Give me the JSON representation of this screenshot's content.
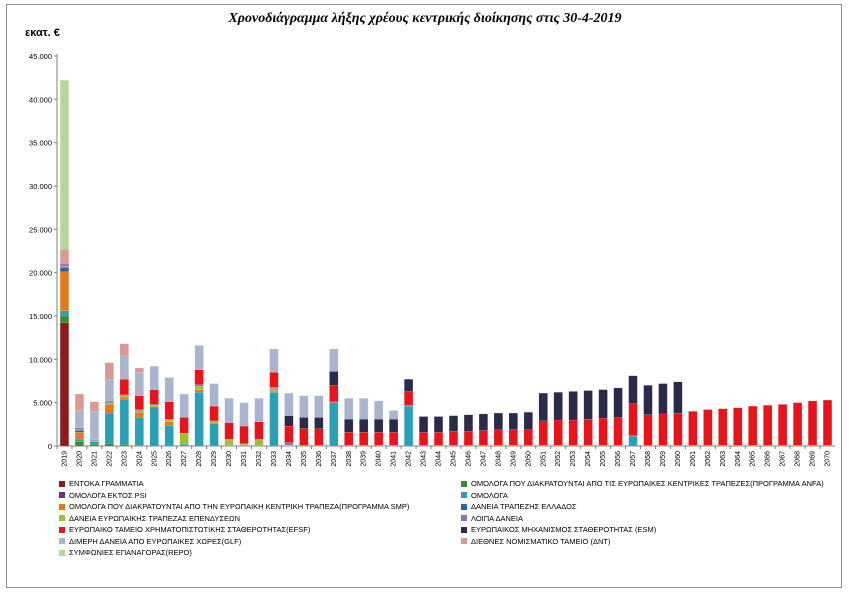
{
  "title": "Χρονοδιάγραμμα λήξης χρέους κεντρικής διοίκησης στις 30-4-2019",
  "unit_label": "εκατ. €",
  "chart_data": {
    "type": "bar",
    "stacked": true,
    "ylim": [
      0,
      45000
    ],
    "yticks": [
      "0",
      "5.000",
      "10.000",
      "15.000",
      "20.000",
      "25.000",
      "30.000",
      "35.000",
      "40.000",
      "45.000"
    ],
    "grid": false,
    "legend_position": "bottom",
    "categories": [
      "2019",
      "2020",
      "2021",
      "2022",
      "2023",
      "2024",
      "2025",
      "2026",
      "2027",
      "2028",
      "2029",
      "2030",
      "2031",
      "2032",
      "2033",
      "2034",
      "2035",
      "2036",
      "2037",
      "2038",
      "2039",
      "2040",
      "2041",
      "2042",
      "2043",
      "2044",
      "2045",
      "2046",
      "2047",
      "2048",
      "2049",
      "2050",
      "2051",
      "2052",
      "2053",
      "2054",
      "2055",
      "2056",
      "2057",
      "2058",
      "2059",
      "2060",
      "2061",
      "2062",
      "2063",
      "2064",
      "2065",
      "2066",
      "2067",
      "2068",
      "2069",
      "2070"
    ],
    "series": [
      {
        "name": "ΕΝΤΟΚΑ ΓΡΑΜΜΑΤΙΑ",
        "color": "#8b1a1a",
        "values": [
          14200,
          0,
          0,
          0,
          0,
          0,
          0,
          0,
          0,
          0,
          0,
          0,
          0,
          0,
          0,
          0,
          0,
          0,
          0,
          0,
          0,
          0,
          0,
          0,
          0,
          0,
          0,
          0,
          0,
          0,
          0,
          0,
          0,
          0,
          0,
          0,
          0,
          0,
          0,
          0,
          0,
          0,
          0,
          0,
          0,
          0,
          0,
          0,
          0,
          0,
          0,
          0
        ]
      },
      {
        "name": "ΟΜΟΛΟΓΑ ΠΟΥ ΔΙΑΚΡΑΤΟΥΝΤΑΙ ΑΠΟ ΤΙΣ ΕΥΡΩΠΑΙΚΕΣ ΚΕΝΤΡΙΚΕΣ ΤΡΑΠΕΖΕΣ(ΠΡΟΓΡΑΜΜΑ ANFA)",
        "color": "#3b8a2e",
        "values": [
          800,
          500,
          200,
          300,
          200,
          100,
          0,
          0,
          0,
          0,
          0,
          0,
          0,
          0,
          0,
          0,
          0,
          0,
          0,
          0,
          0,
          0,
          0,
          0,
          0,
          0,
          0,
          0,
          0,
          0,
          0,
          0,
          0,
          0,
          0,
          0,
          0,
          0,
          0,
          0,
          0,
          0,
          0,
          0,
          0,
          0,
          0,
          0,
          0,
          0,
          0,
          0
        ]
      },
      {
        "name": "ΟΜΟΛΟΓΑ ΕΚΤΟΣ PSI",
        "color": "#5b3a78",
        "values": [
          100,
          0,
          0,
          0,
          0,
          0,
          0,
          0,
          0,
          0,
          0,
          0,
          0,
          0,
          0,
          0,
          0,
          0,
          0,
          0,
          0,
          0,
          0,
          0,
          0,
          0,
          0,
          0,
          0,
          0,
          0,
          0,
          0,
          0,
          0,
          0,
          0,
          0,
          0,
          0,
          0,
          0,
          0,
          0,
          0,
          0,
          0,
          0,
          0,
          0,
          0,
          0
        ]
      },
      {
        "name": "ΟΜΟΛΟΓΑ",
        "color": "#2aa0b5",
        "values": [
          500,
          300,
          300,
          3500,
          5200,
          3200,
          4500,
          2400,
          200,
          6200,
          2600,
          0,
          0,
          0,
          6200,
          0,
          0,
          0,
          5000,
          0,
          0,
          0,
          0,
          4600,
          0,
          0,
          0,
          0,
          0,
          0,
          0,
          0,
          0,
          0,
          0,
          0,
          0,
          0,
          1100,
          0,
          0,
          0,
          0,
          0,
          0,
          0,
          0,
          0,
          0,
          0,
          0,
          0
        ]
      },
      {
        "name": "ΟΜΟΛΟΓΑ ΠΟΥ ΔΙΑΚΡΑΤΟΥΝΤΑΙ ΑΠΟ ΤΗΝ ΕΥΡΩΠΑΙΚΗ ΚΕΝΤΡΙΚΗ ΤΡΑΠΕΖΑ(ΠΡΟΓΡΑΜΜΑ SMP)",
        "color": "#e07a1f",
        "values": [
          4500,
          800,
          0,
          1000,
          200,
          600,
          0,
          400,
          0,
          300,
          0,
          0,
          0,
          0,
          0,
          0,
          0,
          0,
          0,
          0,
          0,
          0,
          0,
          0,
          0,
          0,
          0,
          0,
          0,
          0,
          0,
          0,
          0,
          0,
          0,
          0,
          0,
          0,
          0,
          0,
          0,
          0,
          0,
          0,
          0,
          0,
          0,
          0,
          0,
          0,
          0,
          0
        ]
      },
      {
        "name": "ΔΑΝΕΙΑ ΤΡΑΠΕΖΗΣ ΕΛΛΑΔΟΣ",
        "color": "#2f5fa6",
        "values": [
          500,
          200,
          0,
          0,
          0,
          0,
          0,
          0,
          0,
          0,
          0,
          0,
          0,
          0,
          0,
          0,
          0,
          0,
          0,
          0,
          0,
          0,
          0,
          0,
          0,
          0,
          0,
          0,
          0,
          0,
          0,
          0,
          0,
          0,
          0,
          0,
          0,
          0,
          0,
          0,
          0,
          0,
          0,
          0,
          0,
          0,
          0,
          0,
          0,
          0,
          0,
          0
        ]
      },
      {
        "name": "ΔΑΝΕΙΑ ΕΥΡΩΠΑΙΚΗΣ ΤΡΑΠΕΖΑΣ ΕΠΕΝΔΥΣΕΩΝ",
        "color": "#9fbf3a",
        "values": [
          100,
          100,
          100,
          200,
          200,
          200,
          200,
          200,
          1200,
          400,
          200,
          700,
          200,
          700,
          400,
          100,
          0,
          0,
          0,
          0,
          0,
          0,
          0,
          0,
          0,
          0,
          0,
          0,
          0,
          0,
          0,
          0,
          0,
          0,
          0,
          0,
          0,
          0,
          0,
          0,
          0,
          0,
          0,
          0,
          0,
          0,
          0,
          0,
          0,
          0,
          0,
          0
        ]
      },
      {
        "name": "ΛΟΙΠΑ ΔΑΝΕΙΑ",
        "color": "#8e72b8",
        "values": [
          300,
          200,
          100,
          200,
          100,
          100,
          100,
          100,
          100,
          200,
          100,
          100,
          100,
          100,
          200,
          300,
          100,
          100,
          100,
          100,
          100,
          100,
          100,
          100,
          100,
          100,
          100,
          100,
          100,
          100,
          100,
          100,
          100,
          100,
          100,
          100,
          100,
          100,
          100,
          100,
          100,
          100,
          100,
          100,
          100,
          100,
          100,
          100,
          100,
          100,
          100,
          100
        ]
      },
      {
        "name": "ΕΥΡΩΠΑΙΚΟ ΤΑΜΕΙΟ ΧΡΗΜΑΤΟΠΙΣΤΩΤΙΚΗΣ ΣΤΑΘΕΡΟΤΗΤΑΣ(EFSF)",
        "color": "#e8141b",
        "values": [
          0,
          0,
          0,
          0,
          1800,
          1600,
          1700,
          2000,
          1800,
          1700,
          1700,
          1900,
          2000,
          2000,
          1700,
          1900,
          1900,
          1900,
          1900,
          1500,
          1500,
          1500,
          1500,
          1600,
          1500,
          1500,
          1600,
          1600,
          1700,
          1800,
          1800,
          1800,
          2800,
          2900,
          2900,
          3000,
          3100,
          3200,
          3700,
          3500,
          3600,
          3700,
          3900,
          4100,
          4200,
          4300,
          4500,
          4600,
          4700,
          4900,
          5100,
          5200
        ]
      },
      {
        "name": "ΕΥΡΩΠΑΙΚΟΣ ΜΗΧΑΝΙΣΜΟΣ ΣΤΑΘΕΡΟΤΗΤΑΣ (ESM)",
        "color": "#2b2a4a",
        "values": [
          0,
          0,
          0,
          0,
          0,
          0,
          0,
          0,
          0,
          0,
          0,
          0,
          0,
          0,
          0,
          1200,
          1300,
          1300,
          1600,
          1500,
          1500,
          1500,
          1500,
          1400,
          1800,
          1800,
          1800,
          1900,
          1900,
          1900,
          1900,
          2000,
          3200,
          3200,
          3300,
          3300,
          3300,
          3400,
          3200,
          3400,
          3500,
          3600,
          0,
          0,
          0,
          0,
          0,
          0,
          0,
          0,
          0,
          0
        ]
      },
      {
        "name": "ΔΙΜΕΡΗ ΔΑΝΕΙΑ ΑΠΟ ΕΥΡΩΠΑΙΚΕΣ ΧΩΡΕΣ(GLF)",
        "color": "#a9b4cf",
        "values": [
          0,
          2000,
          3300,
          2500,
          2700,
          2700,
          2700,
          2800,
          2700,
          2800,
          2600,
          2800,
          2700,
          2700,
          2700,
          2600,
          2500,
          2500,
          2600,
          2400,
          2400,
          2100,
          1000,
          0,
          0,
          0,
          0,
          0,
          0,
          0,
          0,
          0,
          0,
          0,
          0,
          0,
          0,
          0,
          0,
          0,
          0,
          0,
          0,
          0,
          0,
          0,
          0,
          0,
          0,
          0,
          0,
          0
        ]
      },
      {
        "name": "ΔΙΕΘΝΕΣ ΝΟΜΙΣΜΑΤΙΚΟ ΤΑΜΕΙΟ (ΔΝΤ)",
        "color": "#d99a94",
        "values": [
          1700,
          1900,
          1100,
          1900,
          1400,
          500,
          0,
          0,
          0,
          0,
          0,
          0,
          0,
          0,
          0,
          0,
          0,
          0,
          0,
          0,
          0,
          0,
          0,
          0,
          0,
          0,
          0,
          0,
          0,
          0,
          0,
          0,
          0,
          0,
          0,
          0,
          0,
          0,
          0,
          0,
          0,
          0,
          0,
          0,
          0,
          0,
          0,
          0,
          0,
          0,
          0,
          0
        ]
      },
      {
        "name": "ΣΥΜΦΩΝΙΕΣ ΕΠΑΝΑΓΟΡΑΣ(REPO)",
        "color": "#b7d69a",
        "values": [
          19500,
          0,
          0,
          0,
          0,
          0,
          0,
          0,
          0,
          0,
          0,
          0,
          0,
          0,
          0,
          0,
          0,
          0,
          0,
          0,
          0,
          0,
          0,
          0,
          0,
          0,
          0,
          0,
          0,
          0,
          0,
          0,
          0,
          0,
          0,
          0,
          0,
          0,
          0,
          0,
          0,
          0,
          0,
          0,
          0,
          0,
          0,
          0,
          0,
          0,
          0,
          0
        ]
      }
    ]
  }
}
